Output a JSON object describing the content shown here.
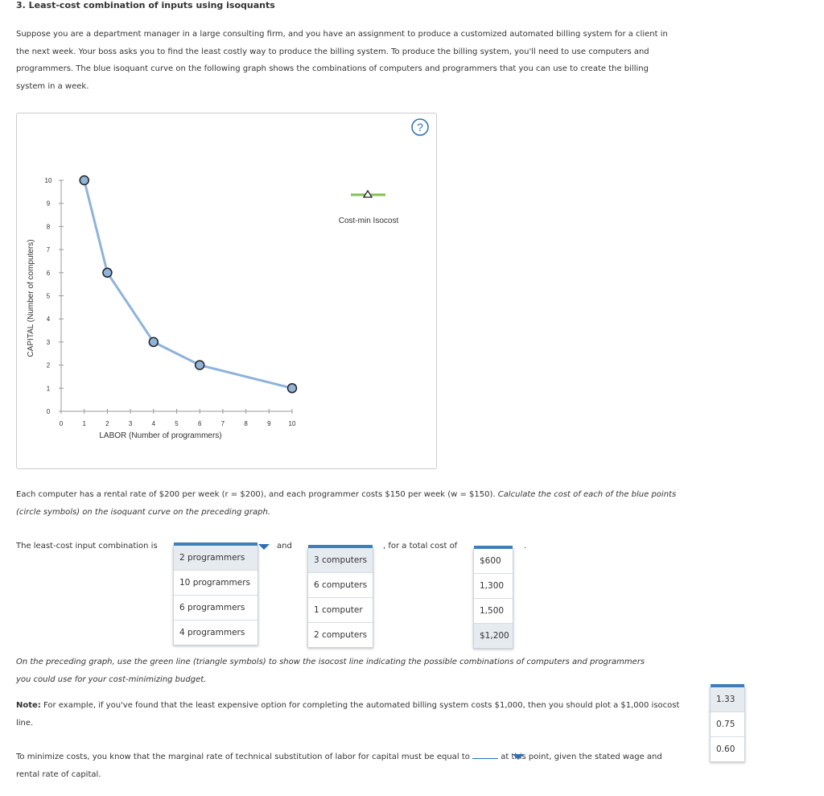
{
  "heading": "3. Least-cost combination of inputs using isoquants",
  "intro": "Suppose you are a department manager in a large consulting firm, and you have an assignment to produce a customized automated billing system for a client in the next week. Your boss asks you to find the least costly way to produce the billing system. To produce the billing system, you'll need to use computers and programmers. The blue isoquant curve on the following graph shows the combinations of computers and programmers that you can use to create the billing system in a week.",
  "help_icon": "?",
  "chart_data": {
    "type": "line",
    "x_label": "LABOR (Number of programmers)",
    "y_label": "CAPITAL (Number of computers)",
    "xlim": [
      0,
      10
    ],
    "ylim": [
      0,
      10
    ],
    "xticks": [
      0,
      1,
      2,
      3,
      4,
      5,
      6,
      7,
      8,
      9,
      10
    ],
    "yticks": [
      0,
      1,
      2,
      3,
      4,
      5,
      6,
      7,
      8,
      9,
      10
    ],
    "series": [
      {
        "color": "#8fb3d9",
        "x": [
          1,
          2,
          4,
          6,
          10
        ],
        "values": [
          10,
          6,
          3,
          2,
          1
        ]
      }
    ],
    "tools": [
      {
        "name": "Cost-min Isocost",
        "color": "#7ec352"
      }
    ]
  },
  "costs_text": {
    "plain": "Each computer has a rental rate of $200 per week (r = $200), and each programmer costs $150 per week (w = $150).",
    "italic": "Calculate the cost of each of the blue points (circle symbols) on the isoquant curve on the preceding graph."
  },
  "question1": {
    "prefix": "The least-cost input combination is",
    "labor_options": [
      "2 programmers",
      "10 programmers",
      "6 programmers",
      "4 programmers"
    ],
    "joiner": "and",
    "capital_options": [
      "3 computers",
      "6 computers",
      "1 computer",
      "2 computers"
    ],
    "cost_prefix": ", for a total cost of",
    "cost_options": [
      "$600",
      "1,300",
      "1,500",
      "$1,200"
    ],
    "suffix": "."
  },
  "instruction": "On the preceding graph, use the green line (triangle symbols) to show the isocost line indicating the possible combinations of computers and programmers you could use for your cost-minimizing budget.",
  "note": {
    "label": "Note:",
    "text": "For example, if you've found that the least expensive option for completing the automated billing system costs $1,000, then you should plot a $1,000 isocost line."
  },
  "question2": {
    "prefix": "To minimize costs, you know that the marginal rate of technical substitution of labor for capital must be equal to",
    "options": [
      "1.33",
      "0.75",
      "0.60"
    ],
    "suffix": "at this point, given the stated wage and rental rate of capital."
  }
}
